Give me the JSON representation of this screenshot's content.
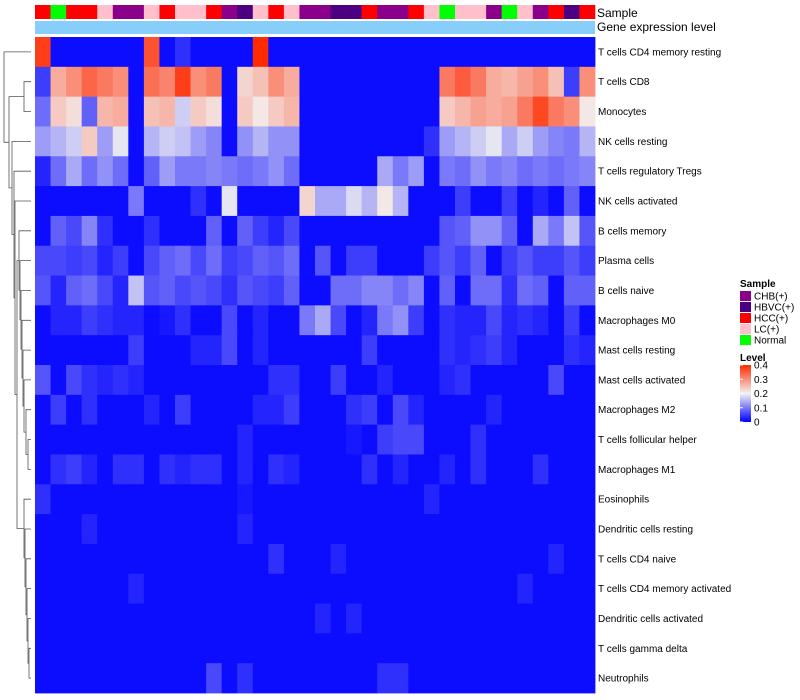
{
  "chart_data": {
    "type": "heatmap",
    "title": "",
    "annotation_labels": {
      "sample": "Sample",
      "gene_expression": "Gene expression level"
    },
    "sample_legend": {
      "title": "Sample",
      "entries": [
        {
          "key": "CHB",
          "label": "CHB(+)",
          "color": "#8B008B"
        },
        {
          "key": "HBVC",
          "label": "HBVC(+)",
          "color": "#4B0082"
        },
        {
          "key": "HCC",
          "label": "HCC(+)",
          "color": "#FF0000"
        },
        {
          "key": "LC",
          "label": "LC(+)",
          "color": "#FFC0CB"
        },
        {
          "key": "Normal",
          "label": "Normal",
          "color": "#00FF00"
        }
      ]
    },
    "level_legend": {
      "title": "Level",
      "ticks": [
        0,
        0.1,
        0.2,
        0.3,
        0.4
      ],
      "tick_labels": [
        "0",
        "0.1",
        "0.2",
        "0.3",
        "0.4"
      ],
      "range": [
        0,
        0.4
      ]
    },
    "color_scale": {
      "low": "#0000FF",
      "mid": "#F2F2F2",
      "high": "#FF2A00",
      "min": 0,
      "mid_value": 0.2,
      "max": 0.4
    },
    "gene_expression_bar_color": "#87CEFA",
    "sample_groups": [
      "HCC",
      "Normal",
      "HCC",
      "HCC",
      "LC",
      "CHB",
      "CHB",
      "LC",
      "HCC",
      "LC",
      "LC",
      "HCC",
      "CHB",
      "HBVC",
      "LC",
      "HCC",
      "LC",
      "CHB",
      "CHB",
      "HBVC",
      "HBVC",
      "HCC",
      "CHB",
      "CHB",
      "HCC",
      "LC",
      "Normal",
      "LC",
      "LC",
      "CHB",
      "Normal",
      "LC",
      "CHB",
      "HCC",
      "HBVC",
      "HCC"
    ],
    "rows": [
      "T cells CD4 memory resting",
      "T cells CD8",
      "Monocytes",
      "NK cells resting",
      "T cells regulatory  Tregs",
      "NK cells activated",
      "B cells memory",
      "Plasma cells",
      "B cells naive",
      "Macrophages M0",
      "Mast cells resting",
      "Mast cells activated",
      "Macrophages M2",
      "T cells follicular helper",
      "Macrophages M1",
      "Eosinophils",
      "Dendritic cells resting",
      "T cells CD4 naive",
      "T cells CD4 memory activated",
      "Dendritic cells activated",
      "T cells gamma delta",
      "Neutrophils"
    ],
    "values": [
      [
        0.38,
        0.01,
        0.01,
        0.01,
        0.01,
        0.01,
        0.01,
        0.36,
        0.01,
        0.04,
        0.01,
        0.01,
        0.01,
        0.01,
        0.4,
        0.01,
        0.01,
        0.01,
        0.01,
        0.01,
        0.01,
        0.01,
        0.01,
        0.01,
        0.01,
        0.01,
        0.01,
        0.01,
        0.01,
        0.01,
        0.01,
        0.01,
        0.01,
        0.01,
        0.01,
        0.01
      ],
      [
        0.05,
        0.27,
        0.3,
        0.34,
        0.32,
        0.3,
        0.01,
        0.33,
        0.31,
        0.38,
        0.3,
        0.32,
        0.01,
        0.23,
        0.25,
        0.3,
        0.27,
        0.01,
        0.01,
        0.01,
        0.01,
        0.01,
        0.01,
        0.01,
        0.01,
        0.01,
        0.32,
        0.35,
        0.32,
        0.27,
        0.26,
        0.28,
        0.3,
        0.25,
        0.05,
        0.3
      ],
      [
        0.09,
        0.24,
        0.22,
        0.08,
        0.26,
        0.27,
        0.01,
        0.25,
        0.26,
        0.17,
        0.24,
        0.22,
        0.01,
        0.24,
        0.21,
        0.24,
        0.26,
        0.01,
        0.01,
        0.01,
        0.01,
        0.01,
        0.01,
        0.01,
        0.01,
        0.01,
        0.24,
        0.26,
        0.28,
        0.27,
        0.28,
        0.32,
        0.37,
        0.32,
        0.3,
        0.21
      ],
      [
        0.13,
        0.15,
        0.17,
        0.24,
        0.13,
        0.19,
        0.01,
        0.15,
        0.17,
        0.16,
        0.13,
        0.11,
        0.01,
        0.12,
        0.15,
        0.12,
        0.12,
        0.01,
        0.01,
        0.01,
        0.01,
        0.01,
        0.01,
        0.01,
        0.01,
        0.04,
        0.13,
        0.15,
        0.17,
        0.19,
        0.14,
        0.17,
        0.13,
        0.11,
        0.1,
        0.15
      ],
      [
        0.03,
        0.09,
        0.14,
        0.09,
        0.12,
        0.09,
        0.01,
        0.08,
        0.13,
        0.1,
        0.1,
        0.11,
        0.1,
        0.09,
        0.1,
        0.12,
        0.09,
        0.01,
        0.01,
        0.01,
        0.01,
        0.01,
        0.14,
        0.1,
        0.13,
        0.01,
        0.1,
        0.09,
        0.12,
        0.1,
        0.11,
        0.09,
        0.1,
        0.09,
        0.1,
        0.11
      ],
      [
        0.01,
        0.01,
        0.01,
        0.01,
        0.01,
        0.01,
        0.1,
        0.01,
        0.01,
        0.01,
        0.04,
        0.01,
        0.19,
        0.01,
        0.01,
        0.01,
        0.01,
        0.23,
        0.14,
        0.14,
        0.18,
        0.15,
        0.21,
        0.15,
        0.01,
        0.01,
        0.01,
        0.05,
        0.01,
        0.01,
        0.05,
        0.01,
        0.03,
        0.01,
        0.08,
        0.01
      ],
      [
        0.01,
        0.08,
        0.06,
        0.11,
        0.04,
        0.01,
        0.01,
        0.04,
        0.01,
        0.01,
        0.01,
        0.08,
        0.01,
        0.08,
        0.05,
        0.03,
        0.06,
        0.01,
        0.01,
        0.01,
        0.01,
        0.01,
        0.01,
        0.01,
        0.01,
        0.01,
        0.07,
        0.08,
        0.12,
        0.12,
        0.08,
        0.01,
        0.14,
        0.1,
        0.16,
        0.07
      ],
      [
        0.06,
        0.06,
        0.05,
        0.06,
        0.03,
        0.05,
        0.01,
        0.06,
        0.08,
        0.09,
        0.06,
        0.09,
        0.05,
        0.06,
        0.08,
        0.07,
        0.09,
        0.01,
        0.07,
        0.01,
        0.05,
        0.05,
        0.01,
        0.01,
        0.01,
        0.05,
        0.07,
        0.05,
        0.08,
        0.01,
        0.05,
        0.07,
        0.05,
        0.05,
        0.07,
        0.05
      ],
      [
        0.07,
        0.03,
        0.08,
        0.09,
        0.06,
        0.03,
        0.16,
        0.07,
        0.08,
        0.06,
        0.07,
        0.06,
        0.04,
        0.07,
        0.06,
        0.05,
        0.08,
        0.01,
        0.01,
        0.09,
        0.09,
        0.11,
        0.11,
        0.09,
        0.11,
        0.01,
        0.08,
        0.01,
        0.09,
        0.09,
        0.04,
        0.09,
        0.08,
        0.01,
        0.08,
        0.08
      ],
      [
        0.01,
        0.03,
        0.03,
        0.05,
        0.04,
        0.03,
        0.03,
        0.01,
        0.02,
        0.04,
        0.01,
        0.01,
        0.06,
        0.01,
        0.03,
        0.01,
        0.01,
        0.1,
        0.14,
        0.06,
        0.01,
        0.03,
        0.1,
        0.12,
        0.05,
        0.01,
        0.04,
        0.03,
        0.03,
        0.06,
        0.03,
        0.04,
        0.03,
        0.01,
        0.05,
        0.01
      ],
      [
        0.01,
        0.01,
        0.01,
        0.01,
        0.01,
        0.01,
        0.05,
        0.01,
        0.01,
        0.01,
        0.03,
        0.03,
        0.06,
        0.01,
        0.03,
        0.01,
        0.01,
        0.01,
        0.01,
        0.01,
        0.01,
        0.05,
        0.01,
        0.01,
        0.01,
        0.01,
        0.04,
        0.03,
        0.04,
        0.05,
        0.03,
        0.01,
        0.01,
        0.01,
        0.04,
        0.03
      ],
      [
        0.07,
        0.01,
        0.06,
        0.04,
        0.03,
        0.04,
        0.03,
        0.01,
        0.01,
        0.01,
        0.01,
        0.01,
        0.01,
        0.01,
        0.01,
        0.04,
        0.04,
        0.01,
        0.01,
        0.05,
        0.01,
        0.01,
        0.03,
        0.01,
        0.01,
        0.01,
        0.03,
        0.04,
        0.01,
        0.01,
        0.01,
        0.01,
        0.01,
        0.06,
        0.01,
        0.01
      ],
      [
        0.01,
        0.05,
        0.01,
        0.04,
        0.01,
        0.01,
        0.01,
        0.03,
        0.01,
        0.05,
        0.01,
        0.01,
        0.01,
        0.01,
        0.03,
        0.03,
        0.05,
        0.01,
        0.01,
        0.01,
        0.04,
        0.05,
        0.01,
        0.06,
        0.03,
        0.01,
        0.01,
        0.01,
        0.01,
        0.03,
        0.01,
        0.01,
        0.01,
        0.01,
        0.01,
        0.01
      ],
      [
        0.01,
        0.01,
        0.01,
        0.01,
        0.01,
        0.01,
        0.01,
        0.01,
        0.01,
        0.01,
        0.01,
        0.01,
        0.01,
        0.03,
        0.01,
        0.01,
        0.01,
        0.01,
        0.01,
        0.01,
        0.02,
        0.01,
        0.05,
        0.06,
        0.06,
        0.01,
        0.01,
        0.01,
        0.04,
        0.01,
        0.01,
        0.01,
        0.01,
        0.01,
        0.01,
        0.01
      ],
      [
        0.01,
        0.04,
        0.05,
        0.03,
        0.01,
        0.04,
        0.04,
        0.01,
        0.04,
        0.03,
        0.04,
        0.04,
        0.01,
        0.03,
        0.01,
        0.04,
        0.03,
        0.01,
        0.01,
        0.01,
        0.01,
        0.04,
        0.01,
        0.03,
        0.01,
        0.01,
        0.03,
        0.01,
        0.04,
        0.01,
        0.01,
        0.01,
        0.04,
        0.01,
        0.01,
        0.01
      ],
      [
        0.04,
        0.01,
        0.01,
        0.01,
        0.01,
        0.01,
        0.01,
        0.01,
        0.01,
        0.01,
        0.01,
        0.01,
        0.01,
        0.02,
        0.01,
        0.01,
        0.01,
        0.01,
        0.01,
        0.01,
        0.01,
        0.01,
        0.01,
        0.01,
        0.01,
        0.03,
        0.01,
        0.01,
        0.01,
        0.01,
        0.01,
        0.01,
        0.01,
        0.01,
        0.01,
        0.01
      ],
      [
        0.01,
        0.01,
        0.01,
        0.03,
        0.01,
        0.01,
        0.01,
        0.01,
        0.01,
        0.01,
        0.01,
        0.01,
        0.01,
        0.03,
        0.01,
        0.01,
        0.01,
        0.01,
        0.01,
        0.01,
        0.01,
        0.01,
        0.01,
        0.01,
        0.01,
        0.01,
        0.01,
        0.01,
        0.01,
        0.01,
        0.01,
        0.01,
        0.01,
        0.01,
        0.01,
        0.01
      ],
      [
        0.01,
        0.01,
        0.01,
        0.01,
        0.01,
        0.01,
        0.01,
        0.01,
        0.01,
        0.01,
        0.01,
        0.01,
        0.01,
        0.01,
        0.01,
        0.04,
        0.01,
        0.01,
        0.01,
        0.03,
        0.01,
        0.01,
        0.01,
        0.01,
        0.01,
        0.01,
        0.01,
        0.01,
        0.01,
        0.01,
        0.01,
        0.01,
        0.01,
        0.03,
        0.01,
        0.01
      ],
      [
        0.01,
        0.01,
        0.01,
        0.01,
        0.01,
        0.01,
        0.03,
        0.01,
        0.01,
        0.01,
        0.01,
        0.01,
        0.01,
        0.01,
        0.01,
        0.01,
        0.01,
        0.01,
        0.01,
        0.01,
        0.01,
        0.01,
        0.01,
        0.01,
        0.01,
        0.01,
        0.01,
        0.01,
        0.01,
        0.01,
        0.01,
        0.03,
        0.01,
        0.01,
        0.01,
        0.01
      ],
      [
        0.01,
        0.01,
        0.01,
        0.01,
        0.01,
        0.01,
        0.01,
        0.01,
        0.01,
        0.01,
        0.01,
        0.01,
        0.01,
        0.01,
        0.01,
        0.01,
        0.01,
        0.01,
        0.03,
        0.01,
        0.03,
        0.01,
        0.01,
        0.01,
        0.01,
        0.01,
        0.01,
        0.01,
        0.01,
        0.01,
        0.01,
        0.01,
        0.01,
        0.01,
        0.01,
        0.01
      ],
      [
        0.01,
        0.01,
        0.01,
        0.01,
        0.01,
        0.01,
        0.01,
        0.01,
        0.01,
        0.01,
        0.01,
        0.01,
        0.01,
        0.01,
        0.01,
        0.01,
        0.01,
        0.01,
        0.01,
        0.01,
        0.01,
        0.01,
        0.01,
        0.01,
        0.01,
        0.01,
        0.01,
        0.01,
        0.01,
        0.01,
        0.01,
        0.01,
        0.01,
        0.01,
        0.01,
        0.01
      ],
      [
        0.01,
        0.01,
        0.01,
        0.01,
        0.01,
        0.01,
        0.01,
        0.01,
        0.01,
        0.01,
        0.01,
        0.06,
        0.01,
        0.04,
        0.01,
        0.01,
        0.01,
        0.01,
        0.01,
        0.01,
        0.01,
        0.01,
        0.04,
        0.04,
        0.01,
        0.01,
        0.01,
        0.01,
        0.01,
        0.01,
        0.01,
        0.01,
        0.01,
        0.01,
        0.01,
        0.01
      ]
    ]
  }
}
